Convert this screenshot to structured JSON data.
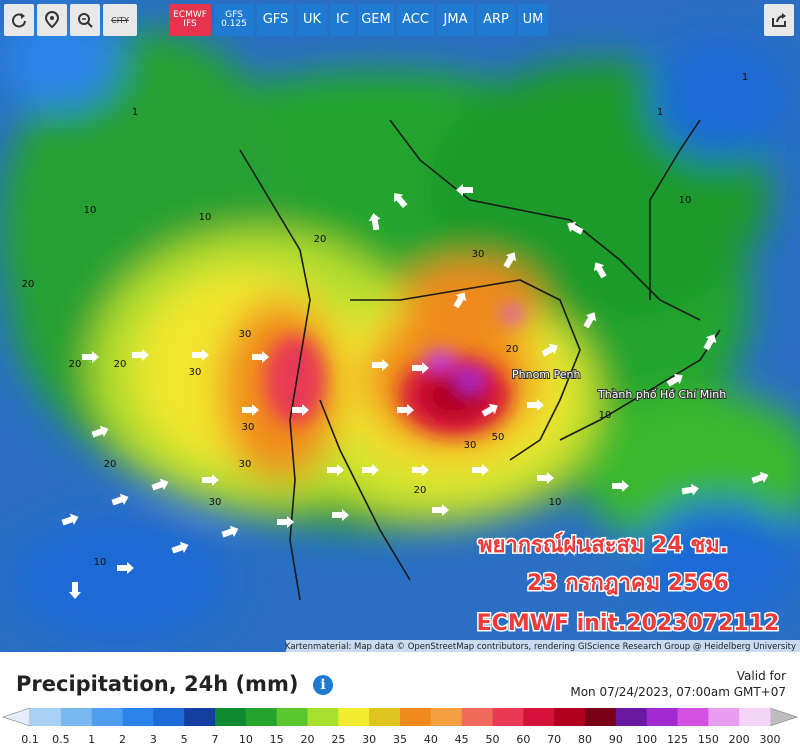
{
  "toolbar": {
    "city": "CITY",
    "models": [
      {
        "name": "ECMWF",
        "sub": "IFS",
        "active": true
      },
      {
        "name": "GFS",
        "sub": "0.125"
      },
      {
        "name": "GFS"
      },
      {
        "name": "UK"
      },
      {
        "name": "IC"
      },
      {
        "name": "GEM"
      },
      {
        "name": "ACC"
      },
      {
        "name": "JMA"
      },
      {
        "name": "ARP"
      },
      {
        "name": "UM"
      }
    ]
  },
  "map": {
    "places": [
      "Phnom Penh",
      "Thành phố Hồ Chí Minh"
    ],
    "contour_labels": [
      20,
      20,
      20,
      30,
      30,
      30,
      30,
      30,
      20,
      10,
      10,
      1,
      1,
      1,
      10,
      20,
      50,
      30,
      20,
      10,
      20,
      30,
      10,
      10
    ],
    "attribution": "Kartenmaterial: Map data © OpenStreetMap contributors, rendering GIScience Research Group @ Heidelberg University"
  },
  "overlay": {
    "lines": [
      "พยากรณ์ฝนสะสม 24 ชม.",
      "23 กรกฎาคม 2566",
      "ECMWF  init.2023072112"
    ]
  },
  "legend": {
    "title": "Precipitation, 24h (mm)",
    "valid_label": "Valid for",
    "valid_time": "Mon 07/24/2023, 07:00am GMT+07",
    "ticks": [
      0.1,
      0.5,
      1,
      2,
      3,
      5,
      7,
      10,
      15,
      20,
      25,
      30,
      35,
      40,
      45,
      50,
      60,
      70,
      80,
      90,
      100,
      125,
      150,
      200,
      300
    ],
    "colors": [
      "#a9d0f5",
      "#7ab8f2",
      "#4d9ef0",
      "#2a84e8",
      "#1c6bd6",
      "#143fa0",
      "#0e8a30",
      "#25a52b",
      "#58c82e",
      "#a8e030",
      "#f2ec2e",
      "#e0c41e",
      "#f08a1e",
      "#f5a040",
      "#f26a5a",
      "#e83a55",
      "#d5133a",
      "#b0001e",
      "#7a0018",
      "#6a1aa0",
      "#a12ad0",
      "#d450e0",
      "#e79cf0",
      "#f4d4f8"
    ],
    "low_color": "#e4eefa",
    "high_color": "#bdbdbd"
  }
}
